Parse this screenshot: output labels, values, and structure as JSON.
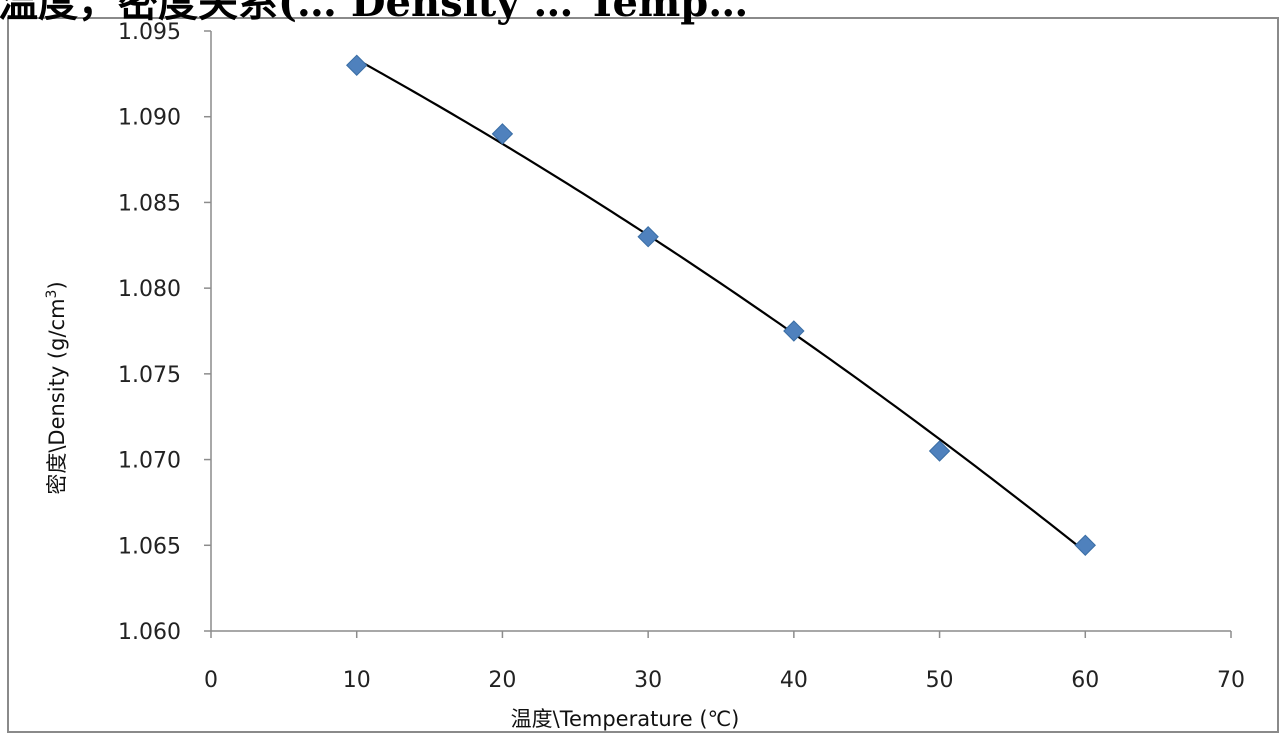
{
  "chart_data": {
    "type": "scatter",
    "title": "温度，密度关系(… Density … Temp…",
    "xlabel": "温度\\Temperature (℃)",
    "ylabel_parts": {
      "prefix": "密度\\Density (g/cm",
      "sup": "3",
      "suffix": ")"
    },
    "xlim": [
      0,
      70
    ],
    "ylim": [
      1.06,
      1.095
    ],
    "x_ticks": [
      0,
      10,
      20,
      30,
      40,
      50,
      60,
      70
    ],
    "x_tick_labels": [
      "0",
      "10",
      "20",
      "30",
      "40",
      "50",
      "60",
      "70"
    ],
    "y_ticks": [
      1.06,
      1.065,
      1.07,
      1.075,
      1.08,
      1.085,
      1.09,
      1.095
    ],
    "y_tick_labels": [
      "1.060",
      "1.065",
      "1.070",
      "1.075",
      "1.080",
      "1.085",
      "1.090",
      "1.095"
    ],
    "series": [
      {
        "marker": "diamond",
        "color": "#4f81bd",
        "points": [
          {
            "x": 10,
            "y": 1.093
          },
          {
            "x": 20,
            "y": 1.089
          },
          {
            "x": 30,
            "y": 1.083
          },
          {
            "x": 40,
            "y": 1.0775
          },
          {
            "x": 50,
            "y": 1.0705
          },
          {
            "x": 60,
            "y": 1.065
          }
        ]
      }
    ],
    "trendline": {
      "type": "polynomial",
      "color": "#000000",
      "x_range": [
        10,
        60
      ]
    },
    "grid": false,
    "legend": "none"
  }
}
